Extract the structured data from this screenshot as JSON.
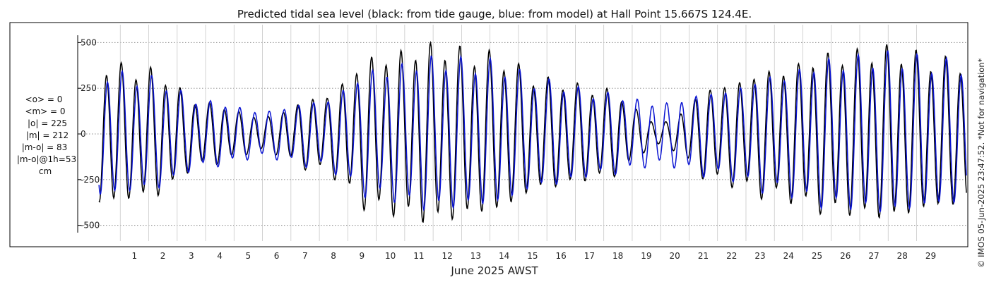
{
  "chart_data": {
    "type": "line",
    "title": "Predicted tidal sea level (black: from tide gauge, blue: from model) at Hall Point 15.667S 124.4E.",
    "xlabel": "June 2025 AWST",
    "ylabel": "",
    "xlim_days": [
      0,
      30.8
    ],
    "ylim": [
      -540,
      540
    ],
    "x_ticks": [
      "1",
      "2",
      "3",
      "4",
      "5",
      "6",
      "7",
      "8",
      "9",
      "10",
      "11",
      "12",
      "13",
      "14",
      "15",
      "16",
      "17",
      "18",
      "19",
      "20",
      "21",
      "22",
      "23",
      "24",
      "25",
      "26",
      "27",
      "28",
      "29"
    ],
    "y_ticks": [
      "500",
      "250",
      "0",
      "-250",
      "-500"
    ],
    "y_tick_values": [
      500,
      250,
      0,
      -250,
      -500
    ],
    "grid": true,
    "series": [
      {
        "name": "from tide gauge",
        "color": "#000000",
        "description": "observed-gauge tidal prediction, semidiurnal, amplitude envelope (cm) sampled each 2 days",
        "env_days": [
          0,
          2,
          4,
          6,
          8,
          10,
          12,
          14,
          16,
          18,
          20,
          22,
          24,
          26,
          28,
          30,
          31
        ],
        "amp": [
          370,
          330,
          160,
          90,
          190,
          400,
          455,
          410,
          280,
          230,
          60,
          250,
          330,
          410,
          440,
          380,
          370
        ],
        "phase_shift_h": 0
      },
      {
        "name": "from model",
        "color": "#0a14d2",
        "description": "model tidal prediction, semidiurnal, amplitude envelope (cm) sampled each 2 days",
        "env_days": [
          0,
          2,
          4,
          6,
          8,
          10,
          12,
          14,
          16,
          18,
          20,
          22,
          24,
          26,
          28,
          30,
          31
        ],
        "amp": [
          330,
          290,
          170,
          120,
          170,
          330,
          390,
          370,
          270,
          210,
          160,
          220,
          300,
          380,
          410,
          370,
          360
        ],
        "phase_shift_h": 0.8
      }
    ]
  },
  "stats": {
    "line1": "<o> = 0",
    "line2": "<m> = 0",
    "line3": "|o| = 225",
    "line4": "|m| = 212",
    "line5": "|m-o| = 83",
    "line6": "|m-o|@1h=53",
    "line7": "cm"
  },
  "credit": "© IMOS 05-Jun-2025 23:47:52.  *Not for navigation*"
}
